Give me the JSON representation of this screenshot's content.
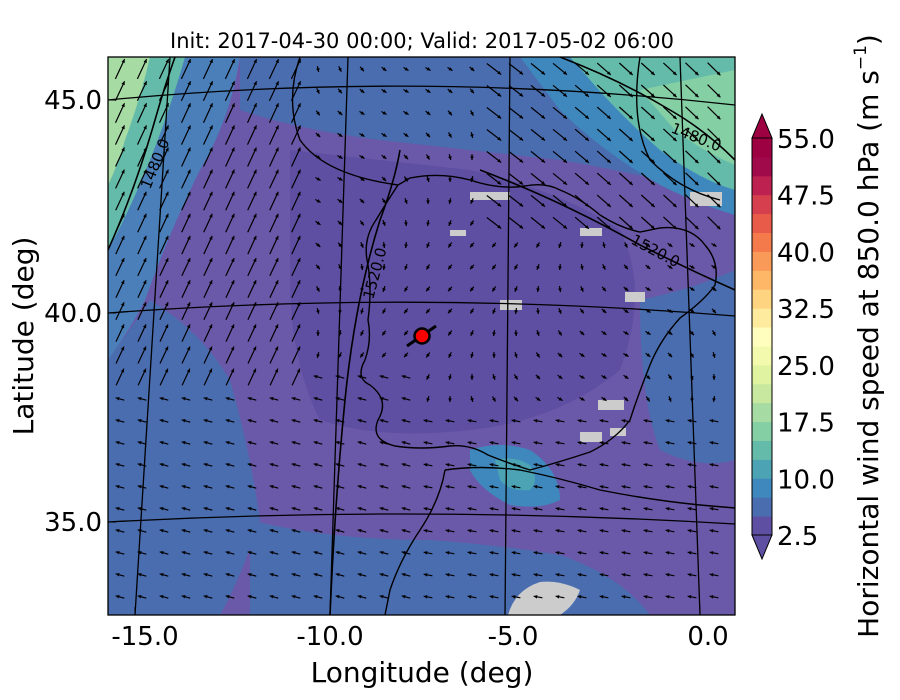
{
  "title": "Init: 2017-04-30 00:00; Valid: 2017-05-02 06:00",
  "x_axis": {
    "label": "Longitude (deg)",
    "ticks": [
      "-15.0",
      "-10.0",
      "-5.0",
      "0.0"
    ],
    "range": [
      -16.0,
      0.2
    ]
  },
  "y_axis": {
    "label": "Latitude (deg)",
    "ticks": [
      "35.0",
      "40.0",
      "45.0"
    ],
    "range": [
      32.8,
      46.1
    ]
  },
  "colorbar": {
    "label": "Horizontal wind speed at 850.0 hPa (m s",
    "label_exponent": "−1",
    "label_close": ")",
    "tick_labels": [
      "2.5",
      "10.0",
      "17.5",
      "25.0",
      "32.5",
      "40.0",
      "47.5",
      "55.0"
    ],
    "range": [
      2.5,
      55.0
    ],
    "levels": 21,
    "colors": [
      "#5e4fa2",
      "#4a6db0",
      "#3f88bd",
      "#4ba3b3",
      "#65bba9",
      "#85cfa5",
      "#a6dba4",
      "#c7e89e",
      "#e0f3a1",
      "#f3faad",
      "#fffebe",
      "#feeb9d",
      "#fed481",
      "#fdb767",
      "#fa9a58",
      "#f57a4b",
      "#e85b48",
      "#d53f4e",
      "#bc2150",
      "#a0094a",
      "#9e0142"
    ],
    "extend": "both"
  },
  "contours": {
    "level_labels": [
      "1480.0",
      "1480.0",
      "1520.0",
      "1520.0"
    ]
  },
  "marker": {
    "lon": -7.7,
    "lat": 39.3,
    "color": "#ff0000"
  },
  "background_color": "#6a59a8",
  "missing_data_color": "#cccccc"
}
